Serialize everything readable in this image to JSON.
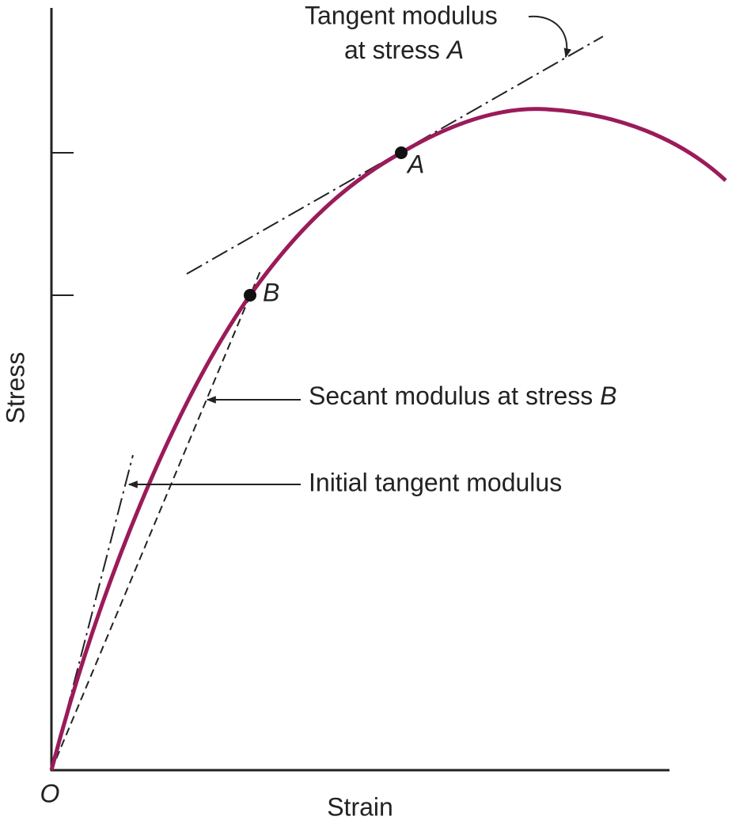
{
  "axes": {
    "x_label": "Strain",
    "y_label": "Stress",
    "origin": "O"
  },
  "points": [
    {
      "label": "A"
    },
    {
      "label": "B"
    }
  ],
  "annotations": {
    "tangent": {
      "line1": "Tangent modulus",
      "line2": "at stress",
      "point": "A"
    },
    "secant": {
      "text": "Secant modulus at stress",
      "point": "B"
    },
    "initial": {
      "text": "Initial tangent modulus"
    }
  }
}
